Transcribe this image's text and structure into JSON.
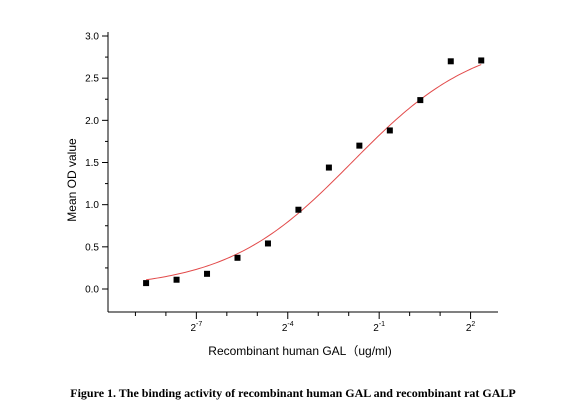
{
  "chart_data": {
    "type": "scatter",
    "xlabel": "Recombinant human GAL（ug/ml)",
    "ylabel": "Mean OD value",
    "caption": "Figure 1. The binding activity of recombinant human GAL and recombinant rat GALP",
    "x_scale": "log2",
    "x_tick_base": "2",
    "x_ticks": [
      {
        "exp": -7,
        "label": "-7"
      },
      {
        "exp": -4,
        "label": "-4"
      },
      {
        "exp": -1,
        "label": "-1"
      },
      {
        "exp": 2,
        "label": "2"
      }
    ],
    "y_ticks": [
      "0.0",
      "0.5",
      "1.0",
      "1.5",
      "2.0",
      "2.5",
      "3.0"
    ],
    "ylim": [
      0,
      3.0
    ],
    "x_exp_range": [
      -9.9,
      2.9
    ],
    "points": [
      {
        "x_exp": -8.65,
        "y": 0.07
      },
      {
        "x_exp": -7.65,
        "y": 0.11
      },
      {
        "x_exp": -6.65,
        "y": 0.18
      },
      {
        "x_exp": -5.65,
        "y": 0.37
      },
      {
        "x_exp": -4.65,
        "y": 0.54
      },
      {
        "x_exp": -3.65,
        "y": 0.94
      },
      {
        "x_exp": -2.65,
        "y": 1.44
      },
      {
        "x_exp": -1.65,
        "y": 1.7
      },
      {
        "x_exp": -0.65,
        "y": 1.88
      },
      {
        "x_exp": 0.35,
        "y": 2.24
      },
      {
        "x_exp": 1.35,
        "y": 2.7
      },
      {
        "x_exp": 2.35,
        "y": 2.71
      }
    ],
    "fit_curve": {
      "type": "4PL",
      "bottom": 0.0,
      "top": 3.0,
      "mid_exp": -1.9,
      "slope": 0.35
    },
    "colors": {
      "points": "#000000",
      "curve": "#e24a4a",
      "axis": "#000000"
    },
    "grid": false,
    "legend": "none"
  }
}
